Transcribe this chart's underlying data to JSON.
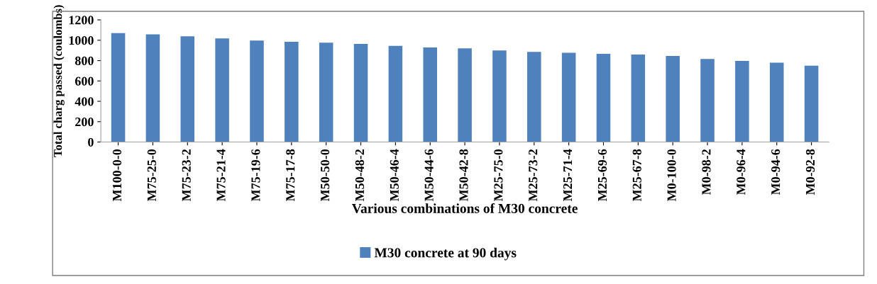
{
  "chart_data": {
    "type": "bar",
    "xlabel": "Various combinations of M30 concrete",
    "ylabel": "Total charg passed (coulombs)",
    "categories": [
      "M100-0-0",
      "M75-25-0",
      "M75-23-2",
      "M75-21-4",
      "M75-19-6",
      "M75-17-8",
      "M50-50-0",
      "M50-48-2",
      "M50-46-4",
      "M50-44-6",
      "M50-42-8",
      "M25-75-0",
      "M25-73-2",
      "M25-71-4",
      "M25-69-6",
      "M25-67-8",
      "M0-100-0",
      "M0-98-2",
      "M0-96-4",
      "M0-94-6",
      "M0-92-8"
    ],
    "series": [
      {
        "name": "M30 concrete at 90 days",
        "color": "#4f81bd",
        "values": [
          1070,
          1057,
          1038,
          1017,
          997,
          984,
          976,
          963,
          944,
          929,
          921,
          899,
          885,
          877,
          867,
          859,
          845,
          816,
          797,
          779,
          749
        ]
      }
    ],
    "ylim": [
      0,
      1200
    ],
    "yticks": [
      0,
      200,
      400,
      600,
      800,
      1000,
      1200
    ],
    "grid": false,
    "legend": "bottom"
  }
}
